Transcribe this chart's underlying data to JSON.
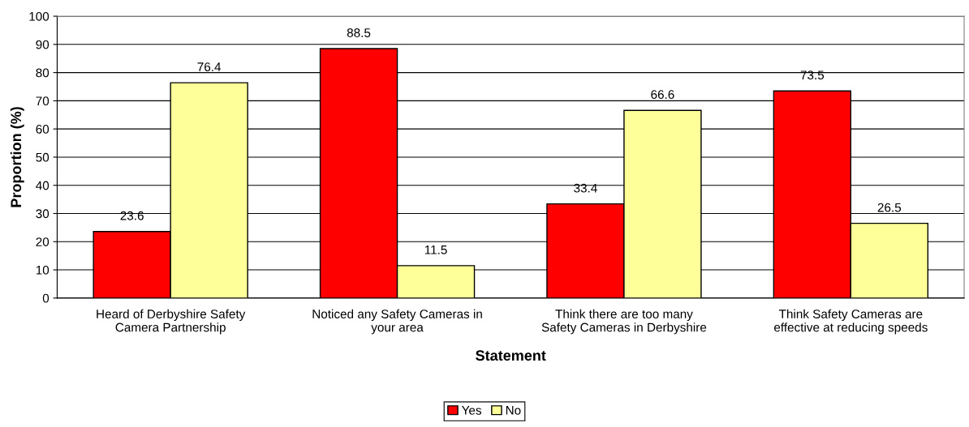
{
  "chart_data": {
    "type": "bar",
    "xlabel": "Statement",
    "ylabel": "Proportion (%)",
    "categories": [
      "Heard of Derbyshire Safety\nCamera Partnership",
      "Noticed any Safety Cameras in\nyour area",
      "Think there are too many\nSafety Cameras in Derbyshire",
      "Think Safety Cameras are\neffective at reducing speeds"
    ],
    "series": [
      {
        "name": "Yes",
        "color": "#ff0000",
        "values": [
          23.6,
          88.5,
          33.4,
          73.5
        ]
      },
      {
        "name": "No",
        "color": "#ffff99",
        "values": [
          76.4,
          11.5,
          66.6,
          26.5
        ]
      }
    ],
    "ylim": [
      0,
      100
    ],
    "yticks": [
      0,
      10,
      20,
      30,
      40,
      50,
      60,
      70,
      80,
      90,
      100
    ],
    "grid": "y",
    "legend": "bottom",
    "data_labels": true
  }
}
